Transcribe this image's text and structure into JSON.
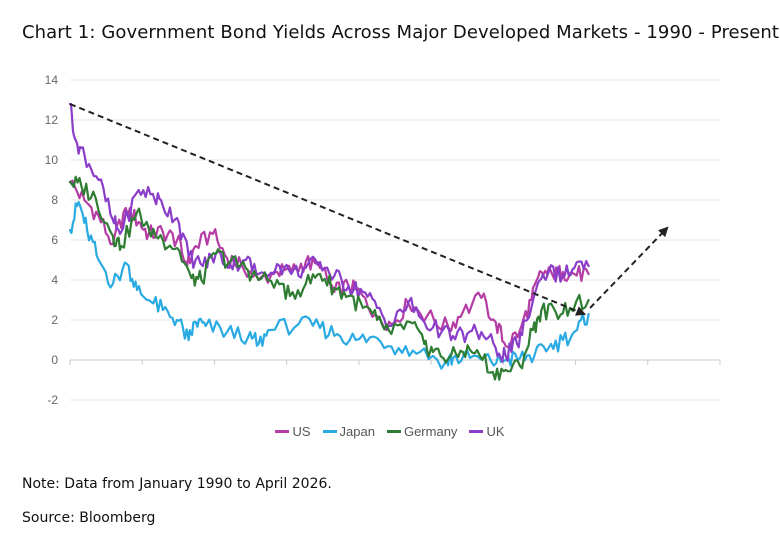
{
  "title": "Chart 1: Government Bond Yields Across Major Developed Markets - 1990 - Present",
  "note": "Note: Data from January 1990 to April 2026.",
  "source": "Source: Bloomberg",
  "chart_data": {
    "type": "line",
    "title": "Chart 1: Government Bond Yields Across Major Developed Markets - 1990 - Present",
    "xlabel": "",
    "ylabel": "",
    "xlim": [
      1990.0,
      2035.5
    ],
    "ylim": [
      -2,
      14
    ],
    "yticks": [
      14,
      12,
      10,
      8,
      6,
      4,
      2,
      0,
      -2
    ],
    "grid": true,
    "legend_position": "bottom",
    "series": [
      {
        "name": "US",
        "color": "#b43ca4",
        "x": [
          1990.0,
          1991.0,
          1992.0,
          1993.0,
          1993.9,
          1994.8,
          1995.5,
          1996.5,
          1997.5,
          1998.2,
          1998.8,
          2000.0,
          2001.0,
          2002.0,
          2003.2,
          2004.5,
          2005.5,
          2006.5,
          2007.5,
          2008.5,
          2009.5,
          2010.5,
          2011.5,
          2012.5,
          2013.7,
          2015.0,
          2016.5,
          2017.5,
          2018.8,
          2019.8,
          2020.5,
          2021.5,
          2022.3,
          2023.0,
          2023.8,
          2024.5,
          2025.3,
          2026.3
        ],
        "y": [
          8.9,
          8.0,
          7.2,
          5.8,
          7.6,
          6.9,
          6.3,
          6.4,
          6.0,
          4.7,
          5.7,
          6.3,
          5.1,
          4.8,
          4.0,
          4.4,
          4.4,
          4.9,
          4.6,
          3.4,
          3.7,
          3.2,
          2.2,
          1.8,
          2.8,
          2.2,
          1.6,
          2.4,
          3.1,
          1.9,
          0.7,
          1.5,
          3.0,
          4.4,
          4.2,
          4.4,
          4.3,
          4.3
        ]
      },
      {
        "name": "Japan",
        "color": "#2aaae2",
        "x": [
          1990.0,
          1990.6,
          1991.2,
          1992.0,
          1993.0,
          1994.0,
          1994.7,
          1995.5,
          1996.5,
          1997.5,
          1998.3,
          1998.8,
          1999.5,
          2001.0,
          2002.5,
          2003.2,
          2004.0,
          2006.0,
          2007.5,
          2008.7,
          2010.0,
          2011.5,
          2013.0,
          2014.5,
          2016.3,
          2016.8,
          2018.0,
          2019.5,
          2020.5,
          2021.5,
          2022.5,
          2023.5,
          2024.5,
          2025.5,
          2026.3
        ],
        "y": [
          6.5,
          7.9,
          6.5,
          5.0,
          3.8,
          4.8,
          3.5,
          3.0,
          2.5,
          2.0,
          1.0,
          1.9,
          1.7,
          1.4,
          1.2,
          0.8,
          1.5,
          1.8,
          1.6,
          1.3,
          1.0,
          1.1,
          0.6,
          0.4,
          -0.1,
          0.1,
          0.1,
          -0.1,
          0.0,
          0.1,
          0.2,
          0.6,
          1.0,
          1.5,
          2.3
        ]
      },
      {
        "name": "Germany",
        "color": "#2e7d32",
        "x": [
          1990.0,
          1990.8,
          1991.8,
          1993.0,
          1993.6,
          1994.7,
          1995.5,
          1996.5,
          1997.5,
          1998.5,
          1999.2,
          2000.2,
          2001.2,
          2002.3,
          2003.2,
          2004.5,
          2005.4,
          2006.5,
          2007.5,
          2008.5,
          2009.5,
          2010.5,
          2011.5,
          2012.5,
          2013.8,
          2014.8,
          2015.4,
          2016.5,
          2017.5,
          2018.5,
          2019.6,
          2020.5,
          2021.5,
          2022.4,
          2023.0,
          2024.0,
          2025.0,
          2026.3
        ],
        "y": [
          8.9,
          8.7,
          8.1,
          6.2,
          5.7,
          7.4,
          6.6,
          6.0,
          5.6,
          4.1,
          4.0,
          5.3,
          4.9,
          4.6,
          4.0,
          4.0,
          3.2,
          3.8,
          4.3,
          3.6,
          3.2,
          2.6,
          2.0,
          1.3,
          1.9,
          0.8,
          0.4,
          0.1,
          0.4,
          0.5,
          -0.6,
          -0.5,
          -0.3,
          1.5,
          2.5,
          2.4,
          2.6,
          3.0
        ]
      },
      {
        "name": "UK",
        "color": "#8a3dc9",
        "x": [
          1990.0,
          1990.4,
          1991.0,
          1992.0,
          1993.0,
          1993.5,
          1994.8,
          1995.8,
          1996.5,
          1997.5,
          1998.3,
          1999.3,
          2000.2,
          2001.2,
          2002.3,
          2003.2,
          2004.5,
          2005.5,
          2006.5,
          2007.5,
          2008.5,
          2009.5,
          2010.5,
          2011.5,
          2012.5,
          2013.7,
          2014.8,
          2016.0,
          2016.8,
          2017.8,
          2018.8,
          2019.8,
          2020.5,
          2021.3,
          2022.0,
          2022.9,
          2023.5,
          2024.5,
          2025.3,
          2026.3
        ],
        "y": [
          12.8,
          11.0,
          10.3,
          9.0,
          7.0,
          6.3,
          8.5,
          8.3,
          7.7,
          7.1,
          5.2,
          4.7,
          5.3,
          4.8,
          5.0,
          4.3,
          4.8,
          4.3,
          4.6,
          4.9,
          4.2,
          3.7,
          3.4,
          2.6,
          1.7,
          2.9,
          1.9,
          1.4,
          1.2,
          1.3,
          1.4,
          0.6,
          0.2,
          0.8,
          2.0,
          4.0,
          4.4,
          4.2,
          4.6,
          4.7
        ]
      }
    ],
    "annotations": [
      {
        "type": "dashed-arrow",
        "from": [
          1990.0,
          12.8
        ],
        "to": [
          2026.0,
          2.3
        ]
      },
      {
        "type": "dashed-arrow",
        "from": [
          2026.4,
          2.6
        ],
        "to": [
          2031.8,
          6.6
        ]
      }
    ]
  }
}
